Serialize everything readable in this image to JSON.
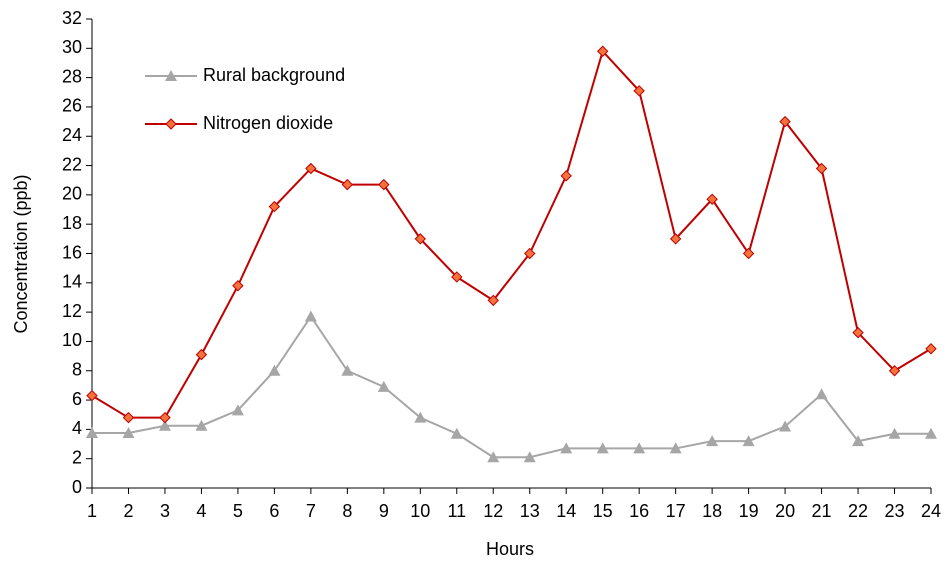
{
  "chart_data": {
    "type": "line",
    "xlabel": "Hours",
    "ylabel": "Concentration (ppb)",
    "x": [
      1,
      2,
      3,
      4,
      5,
      6,
      7,
      8,
      9,
      10,
      11,
      12,
      13,
      14,
      15,
      16,
      17,
      18,
      19,
      20,
      21,
      22,
      23,
      24
    ],
    "series": [
      {
        "name": "Rural background",
        "color": "#a6a6a6",
        "marker": "triangle",
        "values": [
          3.75,
          3.75,
          4.25,
          4.25,
          5.3,
          8.0,
          11.7,
          8.0,
          6.9,
          4.8,
          3.7,
          2.1,
          2.1,
          2.7,
          2.7,
          2.7,
          2.7,
          3.2,
          3.2,
          4.2,
          6.4,
          3.2,
          3.7,
          3.7
        ]
      },
      {
        "name": "Nitrogen dioxide",
        "color": "#c00000",
        "marker_color": "#f4733c",
        "marker": "diamond",
        "values": [
          6.3,
          4.8,
          4.8,
          9.1,
          13.8,
          19.2,
          21.8,
          20.7,
          20.7,
          17.0,
          14.4,
          12.8,
          16.0,
          21.3,
          29.8,
          27.1,
          17.0,
          19.7,
          16.0,
          25.0,
          21.8,
          10.6,
          8.0,
          9.5
        ]
      }
    ],
    "xlim": [
      1,
      24
    ],
    "xticks": [
      1,
      2,
      3,
      4,
      5,
      6,
      7,
      8,
      9,
      10,
      11,
      12,
      13,
      14,
      15,
      16,
      17,
      18,
      19,
      20,
      21,
      22,
      23,
      24
    ],
    "ylim": [
      0,
      32
    ],
    "yticks": [
      0,
      2,
      4,
      6,
      8,
      10,
      12,
      14,
      16,
      18,
      20,
      22,
      24,
      26,
      28,
      30,
      32
    ],
    "grid": false,
    "legend": "upper left"
  }
}
